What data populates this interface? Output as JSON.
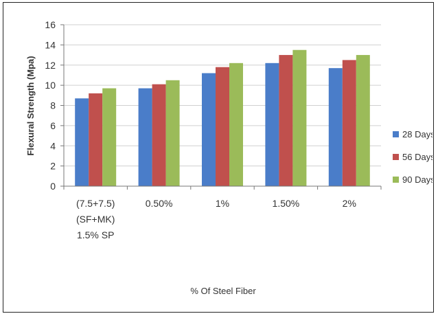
{
  "chart_data": {
    "type": "bar",
    "categories": [
      [
        "(7.5+7.5)",
        "(SF+MK)",
        "1.5% SP"
      ],
      [
        "0.50%"
      ],
      [
        "1%"
      ],
      [
        "1.50%"
      ],
      [
        "2%"
      ]
    ],
    "series": [
      {
        "name": "28 Days",
        "color": "#4a7dc9",
        "values": [
          8.7,
          9.7,
          11.2,
          12.2,
          11.7
        ]
      },
      {
        "name": "56 Days",
        "color": "#c0504d",
        "values": [
          9.2,
          10.1,
          11.8,
          13.0,
          12.5
        ]
      },
      {
        "name": "90 Days",
        "color": "#9bbb59",
        "values": [
          9.7,
          10.5,
          12.2,
          13.5,
          13.0
        ]
      }
    ],
    "title": "",
    "xlabel": "% Of Steel Fiber",
    "ylabel": "Flexural  Strength (Mpa)",
    "ylim": [
      0,
      16
    ],
    "yticks": [
      0,
      2,
      4,
      6,
      8,
      10,
      12,
      14,
      16
    ],
    "grid": true,
    "legend_position": "right"
  }
}
